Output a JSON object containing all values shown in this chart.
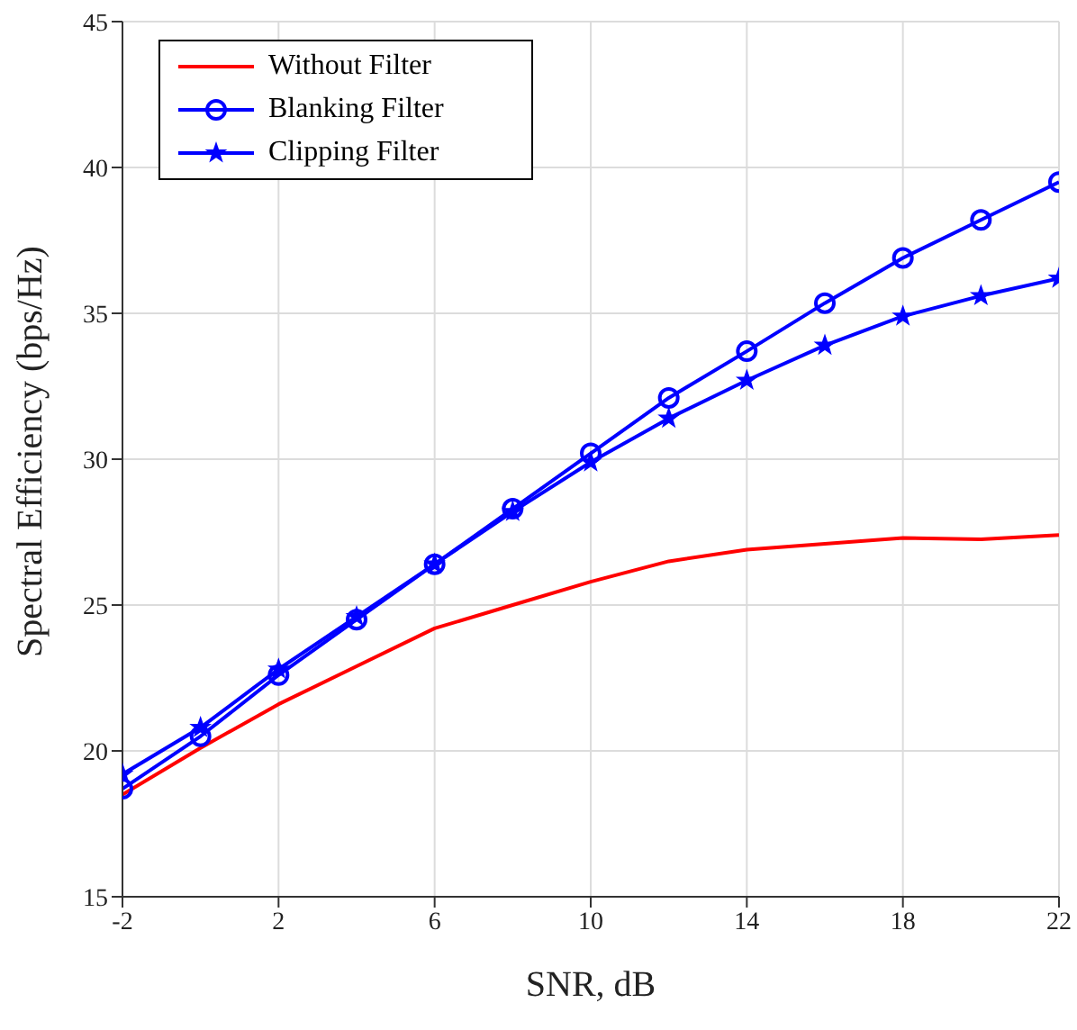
{
  "chart_data": {
    "type": "line",
    "xlabel": "SNR, dB",
    "ylabel": "Spectral Efficiency (bps/Hz)",
    "x": [
      -2,
      0,
      2,
      4,
      6,
      8,
      10,
      12,
      14,
      16,
      18,
      20,
      22
    ],
    "series": [
      {
        "name": "Without Filter",
        "color": "#ff0000",
        "marker": "none",
        "values": [
          18.5,
          20.1,
          21.6,
          22.9,
          24.2,
          25.0,
          25.8,
          26.5,
          26.9,
          27.1,
          27.3,
          27.25,
          27.4
        ]
      },
      {
        "name": "Blanking Filter",
        "color": "#0000ff",
        "marker": "circle",
        "values": [
          18.7,
          20.5,
          22.6,
          24.5,
          26.4,
          28.3,
          30.2,
          32.1,
          33.7,
          35.35,
          36.9,
          38.2,
          39.5
        ]
      },
      {
        "name": "Clipping Filter",
        "color": "#0000ff",
        "marker": "star",
        "values": [
          19.2,
          20.8,
          22.8,
          24.6,
          26.4,
          28.2,
          29.9,
          31.4,
          32.7,
          33.9,
          34.9,
          35.6,
          36.2
        ]
      }
    ],
    "xlim": [
      -2,
      22
    ],
    "xticks": [
      -2,
      2,
      6,
      10,
      14,
      18,
      22
    ],
    "ylim": [
      15,
      45
    ],
    "yticks": [
      15,
      20,
      25,
      30,
      35,
      40,
      45
    ],
    "grid": true,
    "legend": "top left",
    "line_style": "solid"
  }
}
